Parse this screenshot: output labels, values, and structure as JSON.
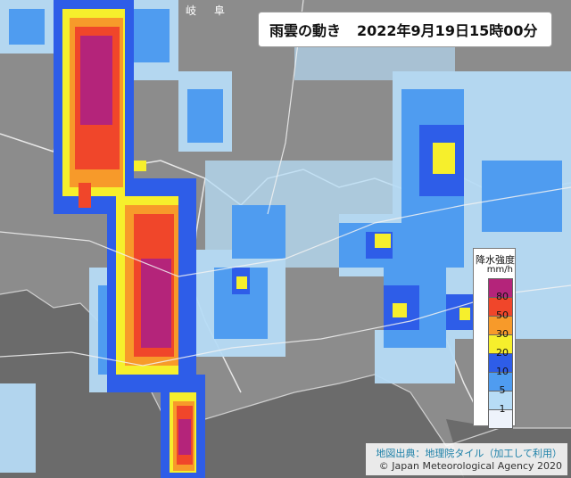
{
  "header": {
    "title": "雨雲の動き",
    "datetime": "2022年9月19日15時00分"
  },
  "legend": {
    "title": "降水強度",
    "unit": "mm/h",
    "levels": [
      {
        "label": "80",
        "color": "#b4247a"
      },
      {
        "label": "50",
        "color": "#f0462a"
      },
      {
        "label": "30",
        "color": "#f79a2a"
      },
      {
        "label": "20",
        "color": "#f6ef2c"
      },
      {
        "label": "10",
        "color": "#2e5de8"
      },
      {
        "label": "5",
        "color": "#4f9cf0"
      },
      {
        "label": "1",
        "color": "#b7dcf6"
      },
      {
        "label": "",
        "color": "#eef3fb"
      }
    ]
  },
  "credit": {
    "source": "地図出典：地理院タイル（加工して利用）",
    "copyright": "© Japan Meteorological Agency 2020"
  },
  "map_labels": {
    "kanji1": "岐",
    "kanji2": "阜"
  }
}
